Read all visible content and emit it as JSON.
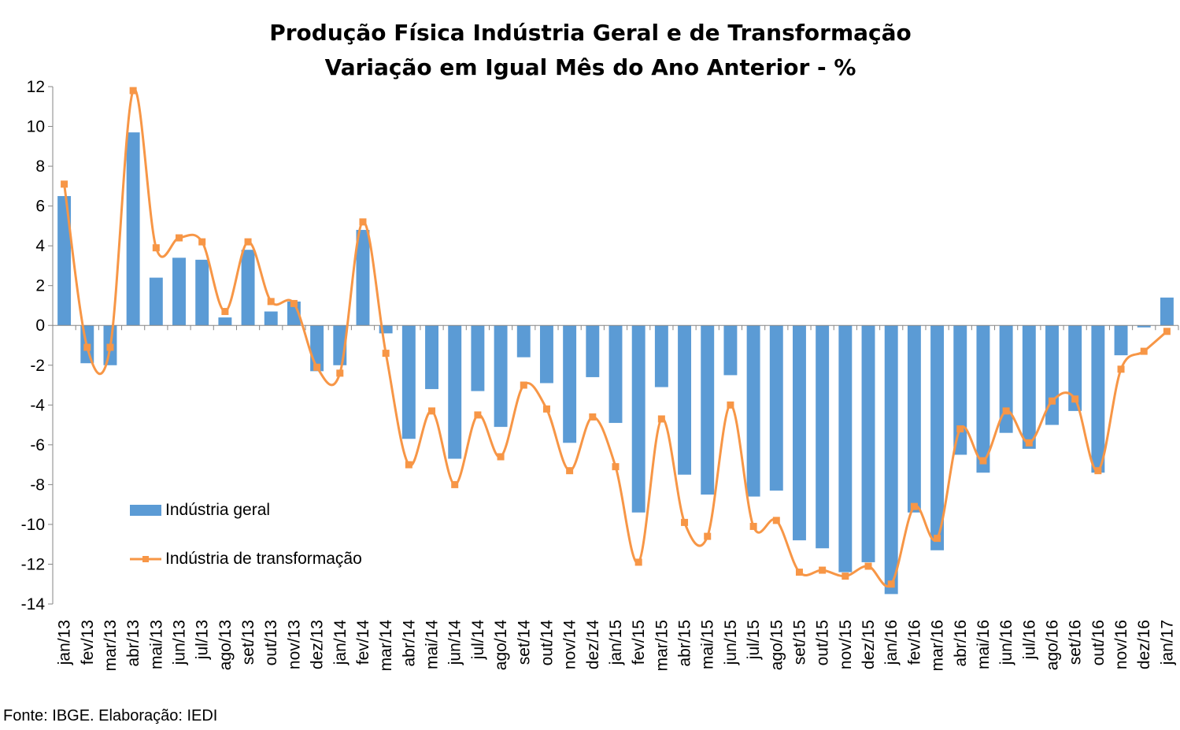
{
  "chart_data": {
    "type": "bar+line",
    "title": "Produção Física Indústria Geral e de Transformação",
    "subtitle": "Variação em Igual Mês do Ano Anterior - %",
    "ylim": [
      -14,
      12
    ],
    "yticks": [
      12,
      10,
      8,
      6,
      4,
      2,
      0,
      -2,
      -4,
      -6,
      -8,
      -10,
      -12,
      -14
    ],
    "categories": [
      "jan/13",
      "fev/13",
      "mar/13",
      "abr/13",
      "mai/13",
      "jun/13",
      "jul/13",
      "ago/13",
      "set/13",
      "out/13",
      "nov/13",
      "dez/13",
      "jan/14",
      "fev/14",
      "mar/14",
      "abr/14",
      "mai/14",
      "jun/14",
      "jul/14",
      "ago/14",
      "set/14",
      "out/14",
      "nov/14",
      "dez/14",
      "jan/15",
      "fev/15",
      "mar/15",
      "abr/15",
      "mai/15",
      "jun/15",
      "jul/15",
      "ago/15",
      "set/15",
      "out/15",
      "nov/15",
      "dez/15",
      "jan/16",
      "fev/16",
      "mar/16",
      "abr/16",
      "mai/16",
      "jun/16",
      "jul/16",
      "ago/16",
      "set/16",
      "out/16",
      "nov/16",
      "dez/16",
      "jan/17"
    ],
    "series": [
      {
        "name": "Indústria geral",
        "type": "bar",
        "color": "#5b9bd5",
        "values": [
          6.5,
          -1.9,
          -2.0,
          9.7,
          2.4,
          3.4,
          3.3,
          0.4,
          3.8,
          0.7,
          1.2,
          -2.3,
          -2.0,
          4.8,
          -0.4,
          -5.7,
          -3.2,
          -6.7,
          -3.3,
          -5.1,
          -1.6,
          -2.9,
          -5.9,
          -2.6,
          -4.9,
          -9.4,
          -3.1,
          -7.5,
          -8.5,
          -2.5,
          -8.6,
          -8.3,
          -10.8,
          -11.2,
          -12.4,
          -11.9,
          -13.5,
          -9.4,
          -11.3,
          -6.5,
          -7.4,
          -5.4,
          -6.2,
          -5.0,
          -4.3,
          -7.4,
          -1.5,
          -0.1,
          1.4
        ]
      },
      {
        "name": "Indústria de transformação",
        "type": "line",
        "color": "#f79646",
        "values": [
          7.1,
          -1.1,
          -1.1,
          11.8,
          3.9,
          4.4,
          4.2,
          0.7,
          4.2,
          1.2,
          1.1,
          -2.1,
          -2.4,
          5.2,
          -1.4,
          -7.0,
          -4.3,
          -8.0,
          -4.5,
          -6.6,
          -3.0,
          -4.2,
          -7.3,
          -4.6,
          -7.1,
          -11.9,
          -4.7,
          -9.9,
          -10.6,
          -4.0,
          -10.1,
          -9.8,
          -12.4,
          -12.3,
          -12.6,
          -12.1,
          -13.0,
          -9.1,
          -10.7,
          -5.2,
          -6.8,
          -4.3,
          -5.9,
          -3.8,
          -3.7,
          -7.3,
          -2.2,
          -1.3,
          -0.3
        ]
      }
    ],
    "legend": [
      {
        "label": "Indústria geral",
        "kind": "bar"
      },
      {
        "label": "Indústria de transformação",
        "kind": "line"
      }
    ]
  },
  "source": "Fonte: IBGE. Elaboração: IEDI"
}
